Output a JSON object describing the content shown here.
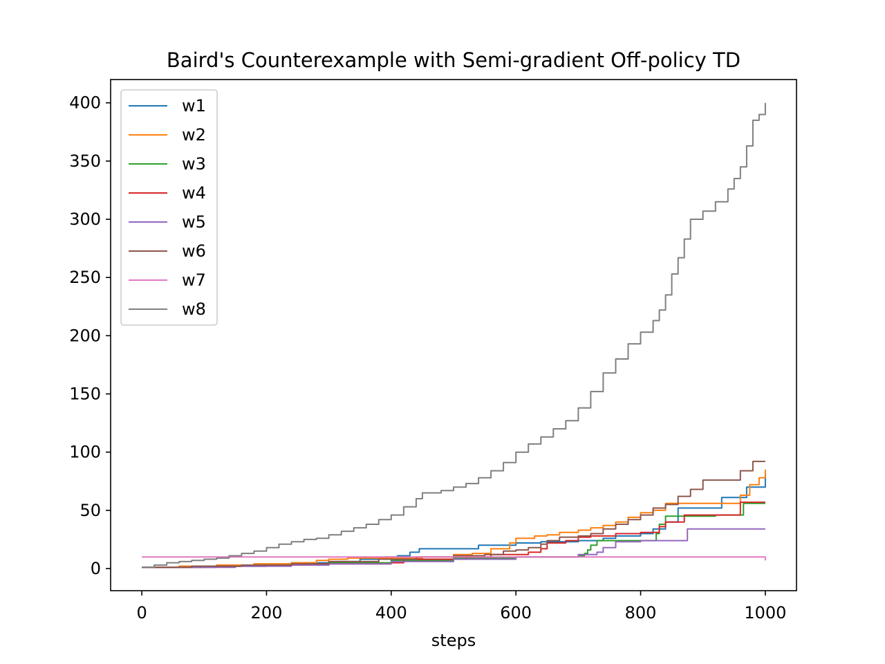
{
  "chart_data": {
    "type": "line",
    "title": "Baird's Counterexample with Semi-gradient Off-policy TD",
    "xlabel": "steps",
    "ylabel": "",
    "xlim": [
      -50,
      1050
    ],
    "ylim": [
      -19,
      420
    ],
    "x_ticks": [
      0,
      200,
      400,
      600,
      800,
      1000
    ],
    "y_ticks": [
      0,
      50,
      100,
      150,
      200,
      250,
      300,
      350,
      400
    ],
    "grid": false,
    "legend_position": "upper-left",
    "step": true,
    "series": [
      {
        "name": "w1",
        "color": "#1f77b4",
        "points": [
          [
            0,
            1
          ],
          [
            60,
            2
          ],
          [
            120,
            3
          ],
          [
            180,
            4
          ],
          [
            240,
            5
          ],
          [
            300,
            6
          ],
          [
            350,
            8
          ],
          [
            390,
            10
          ],
          [
            410,
            11
          ],
          [
            430,
            14
          ],
          [
            445,
            17
          ],
          [
            480,
            17
          ],
          [
            530,
            17
          ],
          [
            540,
            20
          ],
          [
            580,
            20
          ],
          [
            600,
            22
          ],
          [
            640,
            23
          ],
          [
            700,
            24
          ],
          [
            740,
            26
          ],
          [
            760,
            28
          ],
          [
            800,
            30
          ],
          [
            820,
            34
          ],
          [
            840,
            40
          ],
          [
            860,
            52
          ],
          [
            890,
            52
          ],
          [
            920,
            52
          ],
          [
            930,
            61
          ],
          [
            960,
            61
          ],
          [
            970,
            70
          ],
          [
            990,
            70
          ],
          [
            1000,
            81
          ]
        ]
      },
      {
        "name": "w2",
        "color": "#ff7f0e",
        "points": [
          [
            0,
            1
          ],
          [
            60,
            2
          ],
          [
            120,
            3
          ],
          [
            180,
            4
          ],
          [
            240,
            5
          ],
          [
            280,
            7
          ],
          [
            300,
            8
          ],
          [
            330,
            9
          ],
          [
            360,
            9
          ],
          [
            450,
            10
          ],
          [
            500,
            12
          ],
          [
            530,
            13
          ],
          [
            560,
            17
          ],
          [
            590,
            22
          ],
          [
            600,
            26
          ],
          [
            630,
            28
          ],
          [
            650,
            29
          ],
          [
            670,
            31
          ],
          [
            700,
            33
          ],
          [
            720,
            35
          ],
          [
            740,
            37
          ],
          [
            760,
            40
          ],
          [
            780,
            44
          ],
          [
            800,
            48
          ],
          [
            820,
            50
          ],
          [
            840,
            56
          ],
          [
            870,
            56
          ],
          [
            900,
            56
          ],
          [
            930,
            56
          ],
          [
            960,
            63
          ],
          [
            975,
            72
          ],
          [
            990,
            78
          ],
          [
            1000,
            85
          ]
        ]
      },
      {
        "name": "w3",
        "color": "#2ca02c",
        "points": [
          [
            0,
            1
          ],
          [
            100,
            2
          ],
          [
            200,
            3
          ],
          [
            300,
            5
          ],
          [
            400,
            7
          ],
          [
            500,
            9
          ],
          [
            600,
            10
          ],
          [
            700,
            11
          ],
          [
            710,
            13
          ],
          [
            715,
            16
          ],
          [
            720,
            20
          ],
          [
            730,
            24
          ],
          [
            760,
            24
          ],
          [
            800,
            24
          ],
          [
            820,
            24
          ],
          [
            825,
            30
          ],
          [
            830,
            38
          ],
          [
            840,
            45
          ],
          [
            870,
            45
          ],
          [
            900,
            45
          ],
          [
            920,
            46
          ],
          [
            950,
            46
          ],
          [
            965,
            56
          ],
          [
            1000,
            56
          ]
        ]
      },
      {
        "name": "w4",
        "color": "#d62728",
        "points": [
          [
            0,
            1
          ],
          [
            60,
            1
          ],
          [
            120,
            2
          ],
          [
            200,
            3
          ],
          [
            260,
            4
          ],
          [
            330,
            4
          ],
          [
            370,
            4
          ],
          [
            400,
            5
          ],
          [
            420,
            8
          ],
          [
            500,
            8
          ],
          [
            520,
            10
          ],
          [
            560,
            12
          ],
          [
            620,
            14
          ],
          [
            640,
            17
          ],
          [
            650,
            22
          ],
          [
            680,
            24
          ],
          [
            700,
            27
          ],
          [
            720,
            28
          ],
          [
            760,
            30
          ],
          [
            800,
            31
          ],
          [
            830,
            36
          ],
          [
            840,
            40
          ],
          [
            870,
            46
          ],
          [
            880,
            46
          ],
          [
            900,
            46
          ],
          [
            960,
            57
          ],
          [
            1000,
            57
          ]
        ]
      },
      {
        "name": "w5",
        "color": "#9467bd",
        "points": [
          [
            0,
            1
          ],
          [
            60,
            1
          ],
          [
            150,
            2
          ],
          [
            240,
            3
          ],
          [
            300,
            4
          ],
          [
            400,
            6
          ],
          [
            500,
            8
          ],
          [
            600,
            10
          ],
          [
            700,
            12
          ],
          [
            730,
            14
          ],
          [
            740,
            18
          ],
          [
            760,
            23
          ],
          [
            800,
            24
          ],
          [
            850,
            24
          ],
          [
            870,
            24
          ],
          [
            875,
            34
          ],
          [
            900,
            34
          ],
          [
            1000,
            34
          ]
        ]
      },
      {
        "name": "w6",
        "color": "#8c564b",
        "points": [
          [
            0,
            1
          ],
          [
            80,
            2
          ],
          [
            160,
            3
          ],
          [
            240,
            4
          ],
          [
            300,
            6
          ],
          [
            380,
            8
          ],
          [
            440,
            10
          ],
          [
            500,
            11
          ],
          [
            550,
            12
          ],
          [
            580,
            15
          ],
          [
            600,
            16
          ],
          [
            620,
            18
          ],
          [
            640,
            21
          ],
          [
            650,
            24
          ],
          [
            670,
            27
          ],
          [
            700,
            28
          ],
          [
            720,
            30
          ],
          [
            740,
            34
          ],
          [
            760,
            38
          ],
          [
            780,
            42
          ],
          [
            800,
            46
          ],
          [
            820,
            52
          ],
          [
            840,
            55
          ],
          [
            860,
            62
          ],
          [
            880,
            68
          ],
          [
            900,
            76
          ],
          [
            930,
            76
          ],
          [
            960,
            84
          ],
          [
            980,
            92
          ],
          [
            1000,
            92
          ]
        ]
      },
      {
        "name": "w7",
        "color": "#e377c2",
        "points": [
          [
            0,
            10
          ],
          [
            1000,
            7
          ]
        ]
      },
      {
        "name": "w8",
        "color": "#7f7f7f",
        "points": [
          [
            0,
            1
          ],
          [
            20,
            3
          ],
          [
            40,
            5
          ],
          [
            60,
            6
          ],
          [
            80,
            7
          ],
          [
            100,
            8
          ],
          [
            120,
            9
          ],
          [
            140,
            11
          ],
          [
            160,
            13
          ],
          [
            180,
            15
          ],
          [
            200,
            18
          ],
          [
            220,
            21
          ],
          [
            240,
            23
          ],
          [
            260,
            25
          ],
          [
            280,
            26
          ],
          [
            300,
            29
          ],
          [
            320,
            32
          ],
          [
            340,
            35
          ],
          [
            360,
            38
          ],
          [
            380,
            42
          ],
          [
            400,
            46
          ],
          [
            420,
            53
          ],
          [
            440,
            60
          ],
          [
            450,
            65
          ],
          [
            480,
            67
          ],
          [
            500,
            70
          ],
          [
            520,
            73
          ],
          [
            540,
            78
          ],
          [
            560,
            84
          ],
          [
            580,
            91
          ],
          [
            600,
            100
          ],
          [
            620,
            107
          ],
          [
            640,
            113
          ],
          [
            660,
            120
          ],
          [
            680,
            127
          ],
          [
            700,
            138
          ],
          [
            720,
            152
          ],
          [
            740,
            168
          ],
          [
            760,
            180
          ],
          [
            780,
            193
          ],
          [
            800,
            203
          ],
          [
            820,
            213
          ],
          [
            830,
            222
          ],
          [
            840,
            235
          ],
          [
            850,
            253
          ],
          [
            860,
            267
          ],
          [
            870,
            283
          ],
          [
            880,
            300
          ],
          [
            900,
            307
          ],
          [
            920,
            315
          ],
          [
            940,
            326
          ],
          [
            950,
            335
          ],
          [
            960,
            345
          ],
          [
            970,
            363
          ],
          [
            980,
            385
          ],
          [
            990,
            390
          ],
          [
            1000,
            400
          ]
        ]
      }
    ]
  }
}
